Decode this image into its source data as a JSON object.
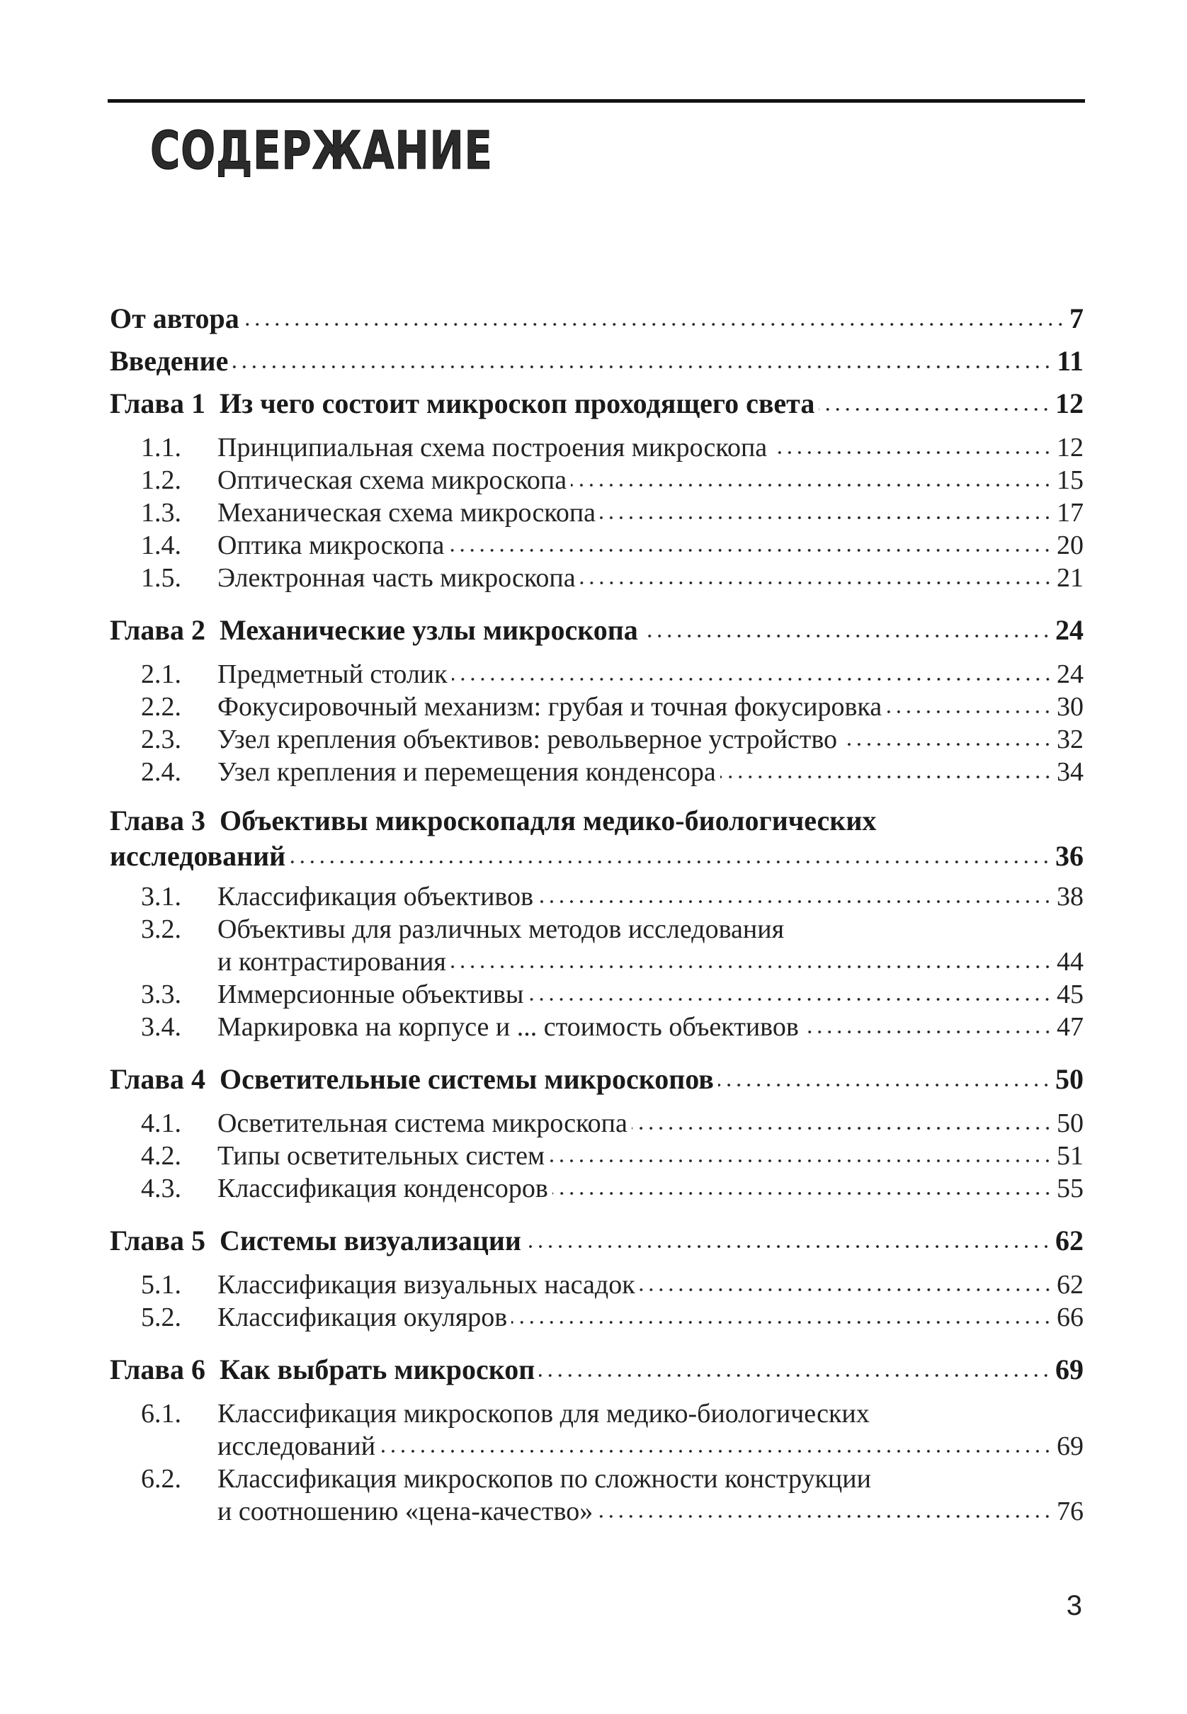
{
  "heading": "СОДЕРЖАНИЕ",
  "page_number": "3",
  "entries": [
    {
      "label": "",
      "title": [
        "От автора"
      ],
      "page": "7",
      "items": []
    },
    {
      "label": "",
      "title": [
        "Введение"
      ],
      "page": "11",
      "items": []
    },
    {
      "label": "Глава 1",
      "title": [
        "Из чего состоит микроскоп проходящего света"
      ],
      "page": "12",
      "items": [
        {
          "num": "1.1.",
          "title": [
            "Принципиальная схема построения микроскопа"
          ],
          "page": "12"
        },
        {
          "num": "1.2.",
          "title": [
            "Оптическая схема микроскопа"
          ],
          "page": "15"
        },
        {
          "num": "1.3.",
          "title": [
            "Механическая схема микроскопа"
          ],
          "page": "17"
        },
        {
          "num": "1.4.",
          "title": [
            "Оптика микроскопа"
          ],
          "page": "20"
        },
        {
          "num": "1.5.",
          "title": [
            "Электронная часть микроскопа"
          ],
          "page": "21"
        }
      ]
    },
    {
      "label": "Глава 2",
      "title": [
        "Механические узлы микроскопа"
      ],
      "page": "24",
      "items": [
        {
          "num": "2.1.",
          "title": [
            "Предметный столик"
          ],
          "page": "24"
        },
        {
          "num": "2.2.",
          "title": [
            "Фокусировочный механизм: грубая и точная фокусировка"
          ],
          "page": "30"
        },
        {
          "num": "2.3.",
          "title": [
            "Узел крепления объективов: револьверное устройство"
          ],
          "page": "32"
        },
        {
          "num": "2.4.",
          "title": [
            "Узел крепления и перемещения конденсора"
          ],
          "page": "34"
        }
      ]
    },
    {
      "label": "Глава 3",
      "title": [
        "Объективы микроскопадля медико-биологических",
        "исследований"
      ],
      "page": "36",
      "items": [
        {
          "num": "3.1.",
          "title": [
            "Классификация объективов"
          ],
          "page": "38"
        },
        {
          "num": "3.2.",
          "title": [
            "Объективы для различных методов исследования",
            "и контрастирования"
          ],
          "page": "44"
        },
        {
          "num": "3.3.",
          "title": [
            "Иммерсионные объективы"
          ],
          "page": "45"
        },
        {
          "num": "3.4.",
          "title": [
            "Маркировка на корпусе и ... стоимость объективов"
          ],
          "page": "47"
        }
      ]
    },
    {
      "label": "Глава 4",
      "title": [
        "Осветительные системы микроскопов"
      ],
      "page": "50",
      "items": [
        {
          "num": "4.1.",
          "title": [
            "Осветительная система микроскопа"
          ],
          "page": "50"
        },
        {
          "num": "4.2.",
          "title": [
            "Типы осветительных систем"
          ],
          "page": "51"
        },
        {
          "num": "4.3.",
          "title": [
            "Классификация конденсоров"
          ],
          "page": "55"
        }
      ]
    },
    {
      "label": "Глава 5",
      "title": [
        "Системы визуализации"
      ],
      "page": "62",
      "items": [
        {
          "num": "5.1.",
          "title": [
            "Классификация визуальных насадок"
          ],
          "page": "62"
        },
        {
          "num": "5.2.",
          "title": [
            "Классификация окуляров"
          ],
          "page": "66"
        }
      ]
    },
    {
      "label": "Глава 6",
      "title": [
        "Как выбрать микроскоп"
      ],
      "page": "69",
      "items": [
        {
          "num": "6.1.",
          "title": [
            "Классификация микроскопов для медико-биологических",
            "исследований"
          ],
          "page": "69"
        },
        {
          "num": "6.2.",
          "title": [
            "Классификация микроскопов по сложности конструкции",
            "и соотношению «цена-качество»"
          ],
          "page": "76"
        }
      ]
    }
  ]
}
